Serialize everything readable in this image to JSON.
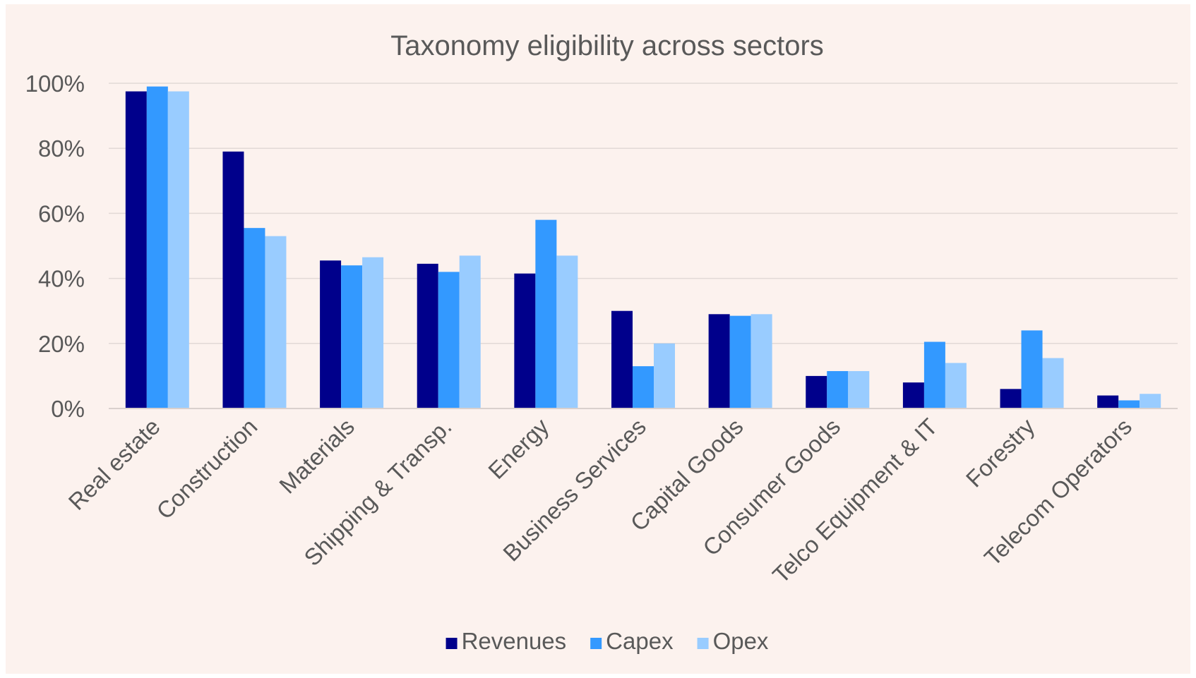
{
  "chart_data": {
    "type": "bar",
    "title": "Taxonomy eligibility across sectors",
    "xlabel": "",
    "ylabel": "",
    "ylim": [
      0,
      100
    ],
    "yticks": [
      0,
      20,
      40,
      60,
      80,
      100
    ],
    "ytick_labels": [
      "0%",
      "20%",
      "40%",
      "60%",
      "80%",
      "100%"
    ],
    "grid": true,
    "legend_position": "bottom",
    "categories": [
      "Real estate",
      "Construction",
      "Materials",
      "Shipping & Transp.",
      "Energy",
      "Business Services",
      "Capital Goods",
      "Consumer Goods",
      "Telco Equipment & IT",
      "Forestry",
      "Telecom Operators"
    ],
    "series": [
      {
        "name": "Revenues",
        "color": "#00008b",
        "values": [
          97.5,
          79,
          45.5,
          44.5,
          41.5,
          30,
          29,
          10,
          8,
          6,
          4
        ]
      },
      {
        "name": "Capex",
        "color": "#3399ff",
        "values": [
          99,
          55.5,
          44,
          42,
          58,
          13,
          28.5,
          11.5,
          20.5,
          24,
          2.5
        ]
      },
      {
        "name": "Opex",
        "color": "#99ccff",
        "values": [
          97.5,
          53,
          46.5,
          47,
          47,
          20,
          29,
          11.5,
          14,
          15.5,
          4.5
        ]
      }
    ]
  }
}
